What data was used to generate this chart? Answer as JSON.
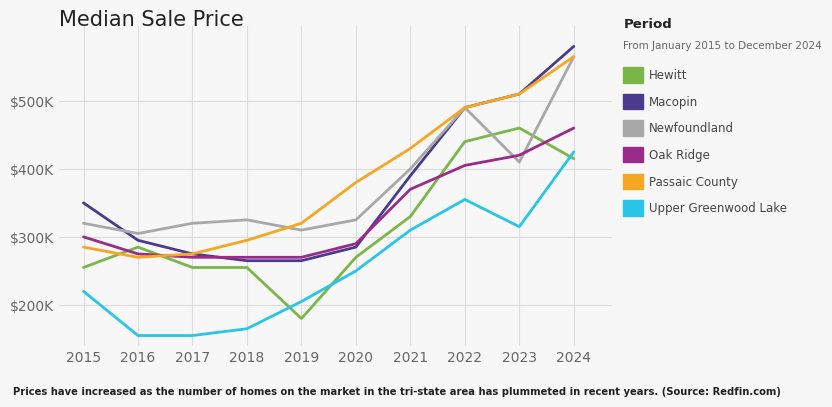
{
  "title": "Median Sale Price",
  "caption": "Prices have increased as the number of homes on the market in the tri-state area has plummeted in recent years. (Source: Redfin.com)",
  "years": [
    2015,
    2016,
    2017,
    2018,
    2019,
    2020,
    2021,
    2022,
    2023,
    2024
  ],
  "series": {
    "Hewitt": {
      "color": "#7ab648",
      "values": [
        255000,
        285000,
        255000,
        255000,
        180000,
        270000,
        330000,
        440000,
        460000,
        415000
      ]
    },
    "Macopin": {
      "color": "#4b3b8c",
      "values": [
        350000,
        295000,
        275000,
        265000,
        265000,
        285000,
        390000,
        490000,
        510000,
        580000
      ]
    },
    "Newfoundland": {
      "color": "#a8a8a8",
      "values": [
        320000,
        305000,
        320000,
        325000,
        310000,
        325000,
        400000,
        490000,
        410000,
        565000
      ]
    },
    "Oak Ridge": {
      "color": "#9b2b8a",
      "values": [
        300000,
        275000,
        270000,
        270000,
        270000,
        290000,
        370000,
        405000,
        420000,
        460000
      ]
    },
    "Passaic County": {
      "color": "#f5a623",
      "values": [
        285000,
        270000,
        275000,
        295000,
        320000,
        380000,
        430000,
        490000,
        510000,
        565000
      ]
    },
    "Upper Greenwood Lake": {
      "color": "#29c5e6",
      "values": [
        220000,
        155000,
        155000,
        165000,
        205000,
        250000,
        310000,
        355000,
        315000,
        425000
      ]
    }
  },
  "ylim": [
    140000,
    610000
  ],
  "yticks": [
    200000,
    300000,
    400000,
    500000
  ],
  "background_color": "#f7f7f7",
  "grid_color": "#dddddd",
  "title_fontsize": 15,
  "tick_fontsize": 10,
  "legend_title": "Period",
  "legend_subtitle": "From January 2015 to December 2024",
  "line_width": 2.0
}
